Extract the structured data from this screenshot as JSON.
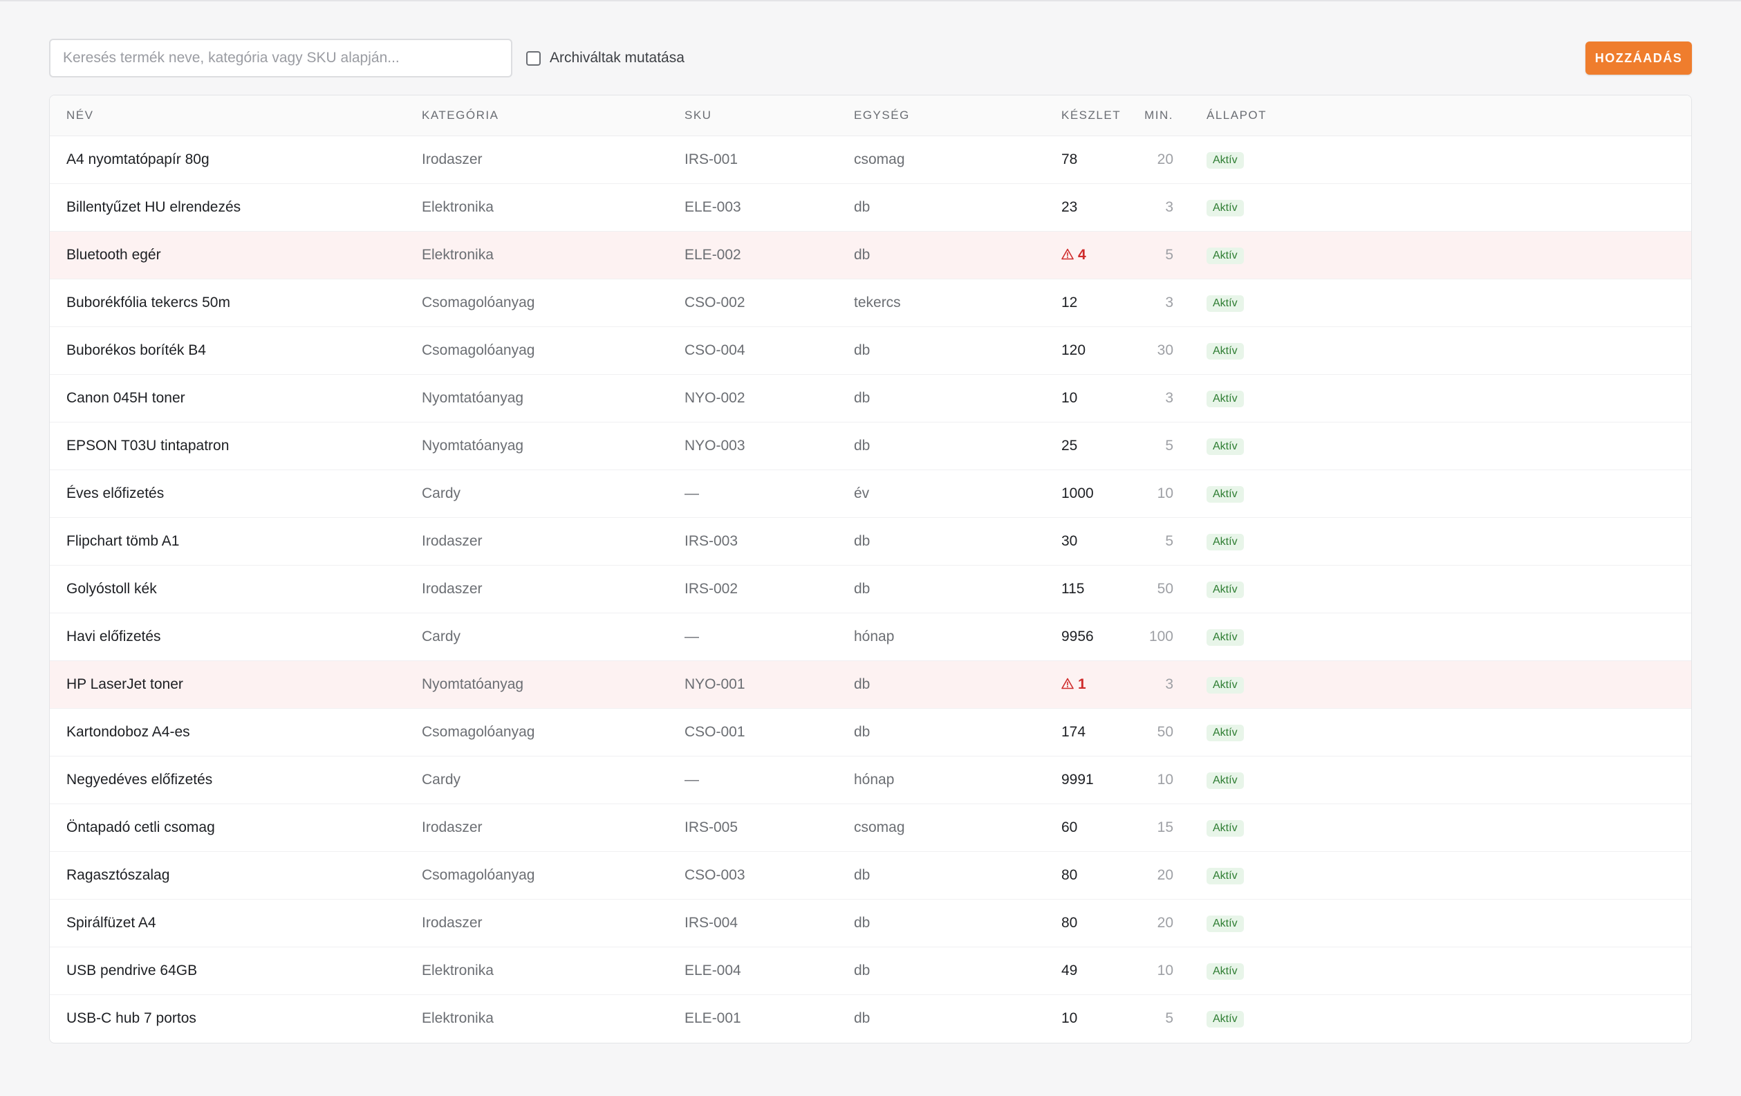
{
  "toolbar": {
    "search_placeholder": "Keresés termék neve, kategória vagy SKU alapján...",
    "archive_label": "Archiváltak mutatása",
    "archive_checked": false,
    "add_label": "HOZZÁADÁS"
  },
  "colors": {
    "accent": "#ef7d2d",
    "low_stock": "#cf2b2b",
    "low_stock_row": "#fdf2f2",
    "status_badge_bg": "#e8f5e9",
    "status_badge_text": "#2e7d32"
  },
  "table": {
    "headers": {
      "name": "NÉV",
      "category": "KATEGÓRIA",
      "sku": "SKU",
      "unit": "EGYSÉG",
      "stock": "KÉSZLET",
      "min": "MIN.",
      "status": "ÁLLAPOT"
    },
    "low_stock_icon": "warning-triangle-icon",
    "rows": [
      {
        "name": "A4 nyomtatópapír 80g",
        "category": "Irodaszer",
        "sku": "IRS-001",
        "unit": "csomag",
        "stock": "78",
        "min": "20",
        "status": "Aktív",
        "low": false
      },
      {
        "name": "Billentyűzet HU elrendezés",
        "category": "Elektronika",
        "sku": "ELE-003",
        "unit": "db",
        "stock": "23",
        "min": "3",
        "status": "Aktív",
        "low": false
      },
      {
        "name": "Bluetooth egér",
        "category": "Elektronika",
        "sku": "ELE-002",
        "unit": "db",
        "stock": "4",
        "min": "5",
        "status": "Aktív",
        "low": true
      },
      {
        "name": "Buborékfólia tekercs 50m",
        "category": "Csomagolóanyag",
        "sku": "CSO-002",
        "unit": "tekercs",
        "stock": "12",
        "min": "3",
        "status": "Aktív",
        "low": false
      },
      {
        "name": "Buborékos boríték B4",
        "category": "Csomagolóanyag",
        "sku": "CSO-004",
        "unit": "db",
        "stock": "120",
        "min": "30",
        "status": "Aktív",
        "low": false
      },
      {
        "name": "Canon 045H toner",
        "category": "Nyomtatóanyag",
        "sku": "NYO-002",
        "unit": "db",
        "stock": "10",
        "min": "3",
        "status": "Aktív",
        "low": false
      },
      {
        "name": "EPSON T03U tintapatron",
        "category": "Nyomtatóanyag",
        "sku": "NYO-003",
        "unit": "db",
        "stock": "25",
        "min": "5",
        "status": "Aktív",
        "low": false
      },
      {
        "name": "Éves előfizetés",
        "category": "Cardy",
        "sku": "—",
        "unit": "év",
        "stock": "1000",
        "min": "10",
        "status": "Aktív",
        "low": false
      },
      {
        "name": "Flipchart tömb A1",
        "category": "Irodaszer",
        "sku": "IRS-003",
        "unit": "db",
        "stock": "30",
        "min": "5",
        "status": "Aktív",
        "low": false
      },
      {
        "name": "Golyóstoll kék",
        "category": "Irodaszer",
        "sku": "IRS-002",
        "unit": "db",
        "stock": "115",
        "min": "50",
        "status": "Aktív",
        "low": false
      },
      {
        "name": "Havi előfizetés",
        "category": "Cardy",
        "sku": "—",
        "unit": "hónap",
        "stock": "9956",
        "min": "100",
        "status": "Aktív",
        "low": false
      },
      {
        "name": "HP LaserJet toner",
        "category": "Nyomtatóanyag",
        "sku": "NYO-001",
        "unit": "db",
        "stock": "1",
        "min": "3",
        "status": "Aktív",
        "low": true
      },
      {
        "name": "Kartondoboz A4-es",
        "category": "Csomagolóanyag",
        "sku": "CSO-001",
        "unit": "db",
        "stock": "174",
        "min": "50",
        "status": "Aktív",
        "low": false
      },
      {
        "name": "Negyedéves előfizetés",
        "category": "Cardy",
        "sku": "—",
        "unit": "hónap",
        "stock": "9991",
        "min": "10",
        "status": "Aktív",
        "low": false
      },
      {
        "name": "Öntapadó cetli csomag",
        "category": "Irodaszer",
        "sku": "IRS-005",
        "unit": "csomag",
        "stock": "60",
        "min": "15",
        "status": "Aktív",
        "low": false
      },
      {
        "name": "Ragasztószalag",
        "category": "Csomagolóanyag",
        "sku": "CSO-003",
        "unit": "db",
        "stock": "80",
        "min": "20",
        "status": "Aktív",
        "low": false
      },
      {
        "name": "Spirálfüzet A4",
        "category": "Irodaszer",
        "sku": "IRS-004",
        "unit": "db",
        "stock": "80",
        "min": "20",
        "status": "Aktív",
        "low": false
      },
      {
        "name": "USB pendrive 64GB",
        "category": "Elektronika",
        "sku": "ELE-004",
        "unit": "db",
        "stock": "49",
        "min": "10",
        "status": "Aktív",
        "low": false
      },
      {
        "name": "USB-C hub 7 portos",
        "category": "Elektronika",
        "sku": "ELE-001",
        "unit": "db",
        "stock": "10",
        "min": "5",
        "status": "Aktív",
        "low": false
      }
    ]
  }
}
